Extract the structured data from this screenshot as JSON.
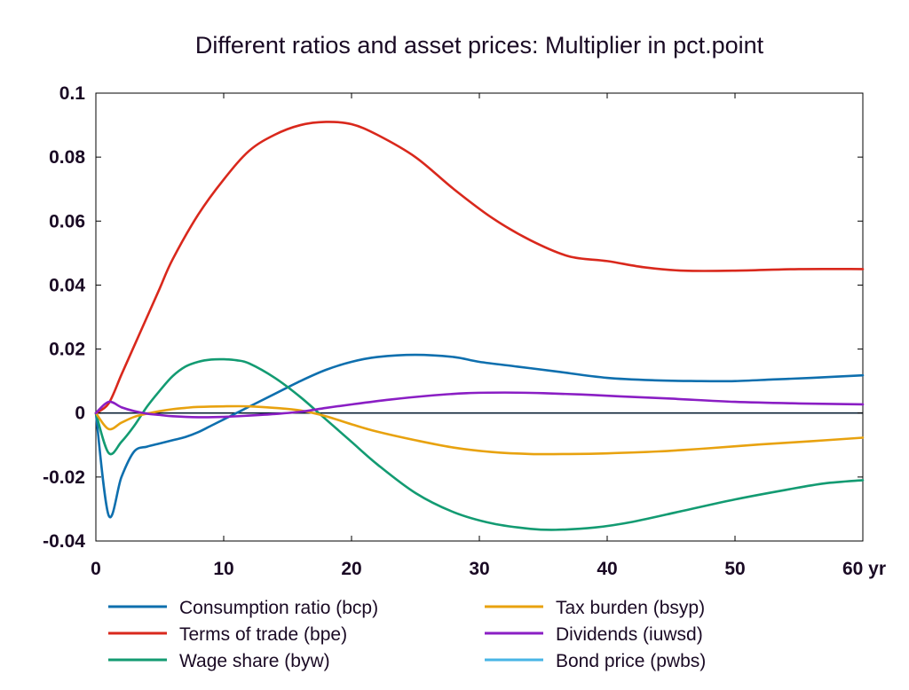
{
  "chart_data": {
    "type": "line",
    "title": "Different ratios and asset prices: Multiplier in pct.point",
    "xlabel": "",
    "ylabel": "",
    "xlim": [
      0,
      60
    ],
    "ylim": [
      -0.04,
      0.1
    ],
    "x_ticks": [
      0,
      10,
      20,
      30,
      40,
      50,
      60
    ],
    "x_tick_labels": [
      "0",
      "10",
      "20",
      "30",
      "40",
      "50",
      "60 yr"
    ],
    "y_ticks": [
      -0.04,
      -0.02,
      0,
      0.02,
      0.04,
      0.06,
      0.08,
      0.1
    ],
    "y_tick_labels": [
      "-0.04",
      "-0.02",
      "0",
      "0.02",
      "0.04",
      "0.06",
      "0.08",
      "0.1"
    ],
    "grid": false,
    "legend_position": "bottom",
    "series": [
      {
        "name": "Consumption ratio (bcp)",
        "color": "#0e6fae",
        "points": [
          [
            0,
            0
          ],
          [
            1,
            -0.032
          ],
          [
            2,
            -0.02
          ],
          [
            3,
            -0.012
          ],
          [
            4,
            -0.0105
          ],
          [
            5,
            -0.0095
          ],
          [
            6,
            -0.0085
          ],
          [
            7,
            -0.0075
          ],
          [
            8,
            -0.006
          ],
          [
            9,
            -0.004
          ],
          [
            10,
            -0.002
          ],
          [
            12,
            0.002
          ],
          [
            14,
            0.006
          ],
          [
            16,
            0.01
          ],
          [
            18,
            0.0135
          ],
          [
            20,
            0.016
          ],
          [
            22,
            0.0175
          ],
          [
            25,
            0.0182
          ],
          [
            28,
            0.0175
          ],
          [
            30,
            0.016
          ],
          [
            33,
            0.0145
          ],
          [
            36,
            0.013
          ],
          [
            40,
            0.011
          ],
          [
            44,
            0.0102
          ],
          [
            47,
            0.01
          ],
          [
            50,
            0.01
          ],
          [
            53,
            0.0105
          ],
          [
            56,
            0.011
          ],
          [
            60,
            0.0118
          ]
        ]
      },
      {
        "name": "Terms of trade (bpe)",
        "color": "#d9281c",
        "points": [
          [
            0,
            0
          ],
          [
            1,
            0.003
          ],
          [
            2,
            0.012
          ],
          [
            3,
            0.021
          ],
          [
            4,
            0.03
          ],
          [
            5,
            0.039
          ],
          [
            6,
            0.048
          ],
          [
            8,
            0.062
          ],
          [
            10,
            0.073
          ],
          [
            12,
            0.082
          ],
          [
            14,
            0.087
          ],
          [
            16,
            0.09
          ],
          [
            18,
            0.091
          ],
          [
            20,
            0.0903
          ],
          [
            22,
            0.087
          ],
          [
            25,
            0.08
          ],
          [
            28,
            0.07
          ],
          [
            31,
            0.061
          ],
          [
            34,
            0.054
          ],
          [
            37,
            0.049
          ],
          [
            40,
            0.0475
          ],
          [
            43,
            0.0455
          ],
          [
            46,
            0.0445
          ],
          [
            50,
            0.0445
          ],
          [
            55,
            0.045
          ],
          [
            60,
            0.045
          ]
        ]
      },
      {
        "name": "Wage share (byw)",
        "color": "#139b72",
        "points": [
          [
            0,
            0
          ],
          [
            1,
            -0.0125
          ],
          [
            2,
            -0.009
          ],
          [
            3,
            -0.004
          ],
          [
            4,
            0.002
          ],
          [
            5,
            0.007
          ],
          [
            6,
            0.0115
          ],
          [
            7,
            0.0145
          ],
          [
            8,
            0.016
          ],
          [
            9,
            0.0167
          ],
          [
            10,
            0.0168
          ],
          [
            11,
            0.0165
          ],
          [
            12,
            0.0155
          ],
          [
            14,
            0.011
          ],
          [
            16,
            0.005
          ],
          [
            18,
            -0.002
          ],
          [
            20,
            -0.009
          ],
          [
            22,
            -0.016
          ],
          [
            25,
            -0.025
          ],
          [
            28,
            -0.031
          ],
          [
            31,
            -0.0345
          ],
          [
            34,
            -0.0362
          ],
          [
            36,
            -0.0365
          ],
          [
            39,
            -0.0358
          ],
          [
            42,
            -0.034
          ],
          [
            46,
            -0.0305
          ],
          [
            50,
            -0.027
          ],
          [
            54,
            -0.024
          ],
          [
            57,
            -0.022
          ],
          [
            60,
            -0.021
          ]
        ]
      },
      {
        "name": "Tax burden (bsyp)",
        "color": "#e8a20f",
        "points": [
          [
            0,
            0
          ],
          [
            1,
            -0.005
          ],
          [
            2,
            -0.003
          ],
          [
            3,
            -0.0012
          ],
          [
            4,
            -0.0002
          ],
          [
            5,
            0.0006
          ],
          [
            6,
            0.0012
          ],
          [
            7,
            0.0016
          ],
          [
            8,
            0.0019
          ],
          [
            10,
            0.0021
          ],
          [
            12,
            0.0021
          ],
          [
            14,
            0.0016
          ],
          [
            16,
            0.0008
          ],
          [
            18,
            -0.001
          ],
          [
            20,
            -0.0035
          ],
          [
            22,
            -0.0058
          ],
          [
            25,
            -0.0085
          ],
          [
            28,
            -0.0108
          ],
          [
            31,
            -0.0122
          ],
          [
            34,
            -0.0128
          ],
          [
            37,
            -0.0128
          ],
          [
            40,
            -0.0126
          ],
          [
            44,
            -0.012
          ],
          [
            48,
            -0.011
          ],
          [
            52,
            -0.0098
          ],
          [
            56,
            -0.0088
          ],
          [
            60,
            -0.0077
          ]
        ]
      },
      {
        "name": "Dividends (iuwsd)",
        "color": "#8a1ec4",
        "points": [
          [
            0,
            0
          ],
          [
            1,
            0.0035
          ],
          [
            2,
            0.0018
          ],
          [
            3,
            0.0006
          ],
          [
            4,
            -0.0002
          ],
          [
            5,
            -0.0006
          ],
          [
            6,
            -0.001
          ],
          [
            8,
            -0.0013
          ],
          [
            10,
            -0.0012
          ],
          [
            12,
            -0.0008
          ],
          [
            14,
            -0.0003
          ],
          [
            16,
            0.0004
          ],
          [
            18,
            0.0016
          ],
          [
            20,
            0.0027
          ],
          [
            23,
            0.0042
          ],
          [
            26,
            0.0054
          ],
          [
            29,
            0.0062
          ],
          [
            32,
            0.0064
          ],
          [
            35,
            0.0062
          ],
          [
            38,
            0.0058
          ],
          [
            41,
            0.0052
          ],
          [
            45,
            0.0045
          ],
          [
            50,
            0.0035
          ],
          [
            55,
            0.003
          ],
          [
            60,
            0.0027
          ]
        ]
      },
      {
        "name": "Bond price (pwbs)",
        "color": "#48b5e6",
        "points": []
      }
    ]
  }
}
